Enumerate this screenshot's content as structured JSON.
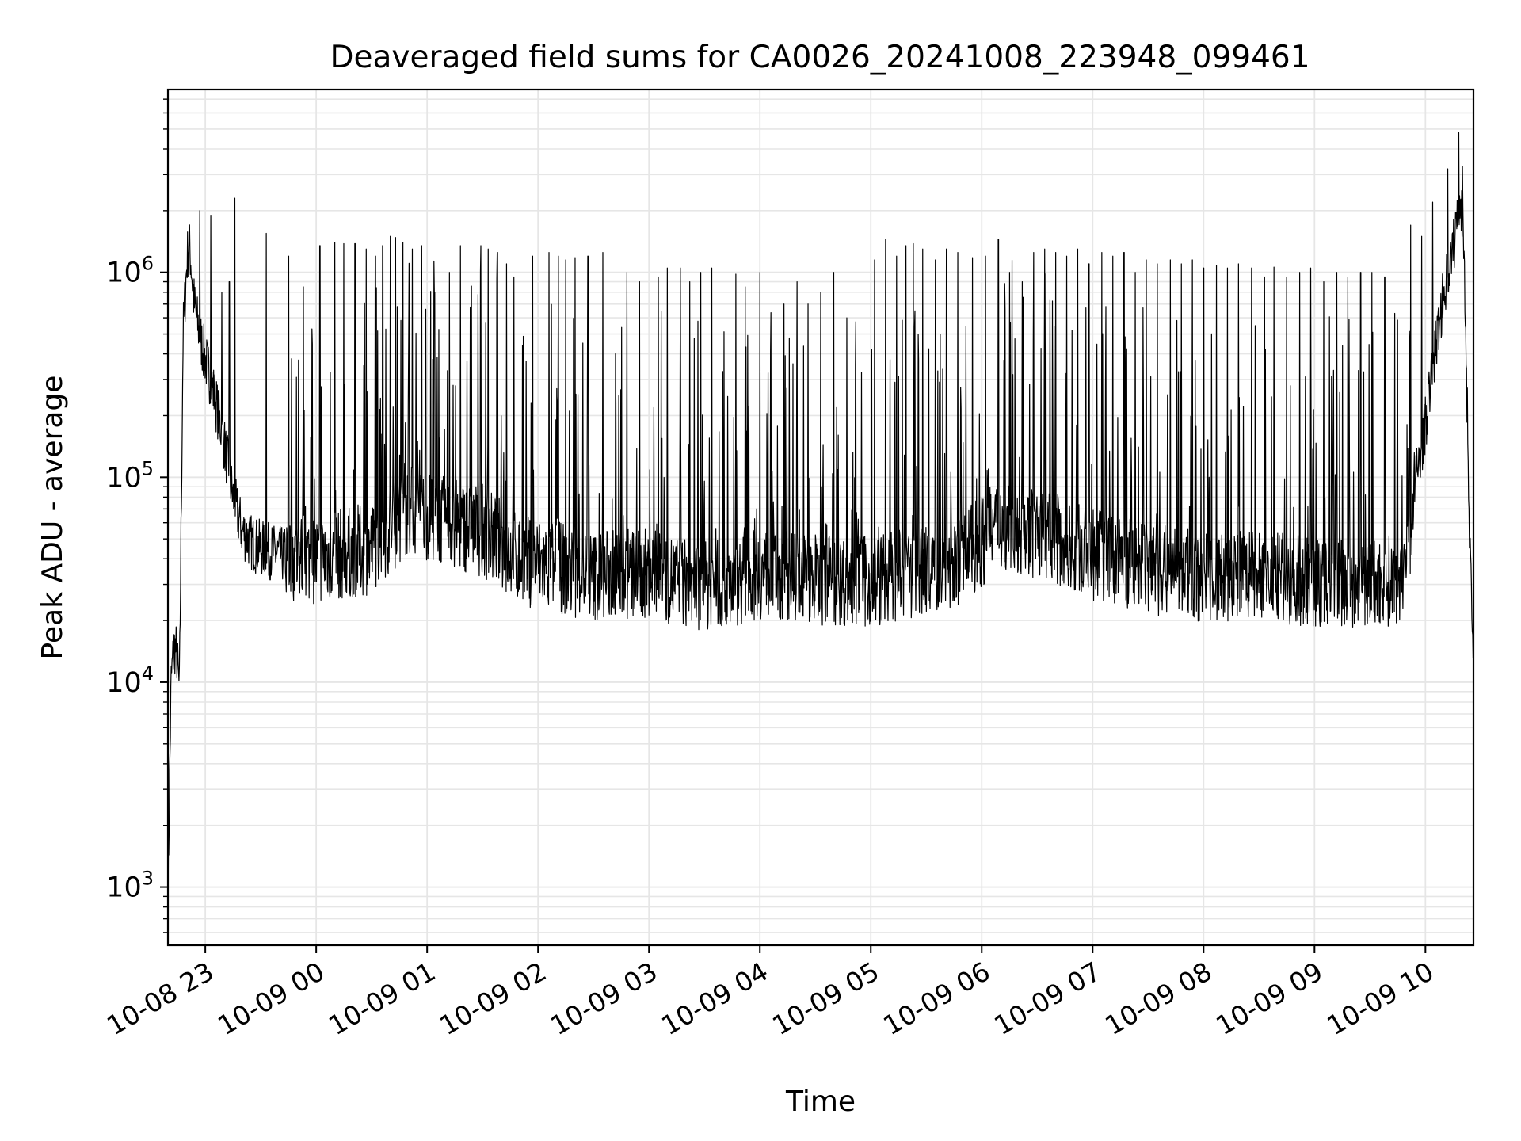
{
  "chart_data": {
    "type": "line",
    "title": "Deaveraged field sums for CA0026_20241008_223948_099461",
    "xlabel": "Time",
    "ylabel": "Peak ADU - average",
    "yscale": "log",
    "ylim": [
      520,
      7800000
    ],
    "xlim": [
      "2024-10-08 22:39:48",
      "2024-10-09 10:26:00"
    ],
    "grid": true,
    "line_color": "#000000",
    "grid_color": "#e6e6e6",
    "x_ticks": [
      {
        "t": "2024-10-08 23:00",
        "label": "10-08 23"
      },
      {
        "t": "2024-10-09 00:00",
        "label": "10-09 00"
      },
      {
        "t": "2024-10-09 01:00",
        "label": "10-09 01"
      },
      {
        "t": "2024-10-09 02:00",
        "label": "10-09 02"
      },
      {
        "t": "2024-10-09 03:00",
        "label": "10-09 03"
      },
      {
        "t": "2024-10-09 04:00",
        "label": "10-09 04"
      },
      {
        "t": "2024-10-09 05:00",
        "label": "10-09 05"
      },
      {
        "t": "2024-10-09 06:00",
        "label": "10-09 06"
      },
      {
        "t": "2024-10-09 07:00",
        "label": "10-09 07"
      },
      {
        "t": "2024-10-09 08:00",
        "label": "10-09 08"
      },
      {
        "t": "2024-10-09 09:00",
        "label": "10-09 09"
      },
      {
        "t": "2024-10-09 10:00",
        "label": "10-09 10"
      }
    ],
    "y_ticks": [
      {
        "value": 1000,
        "base": "10",
        "exp": "3"
      },
      {
        "value": 10000,
        "base": "10",
        "exp": "4"
      },
      {
        "value": 100000,
        "base": "10",
        "exp": "5"
      },
      {
        "value": 1000000,
        "base": "10",
        "exp": "6"
      }
    ],
    "series": [
      {
        "x": [
          "2024-10-08 22:39:48",
          "2024-10-08 22:40:30",
          "2024-10-08 22:41:30",
          "2024-10-08 22:43:00",
          "2024-10-08 22:44:30",
          "2024-10-08 22:46:00",
          "2024-10-08 22:48:00",
          "2024-10-08 22:50:00",
          "2024-10-08 22:51:00",
          "2024-10-08 22:52:00",
          "2024-10-08 22:54:00",
          "2024-10-08 22:56:00",
          "2024-10-08 22:58:00",
          "2024-10-08 23:00:00",
          "2024-10-08 23:05:00",
          "2024-10-08 23:10:00",
          "2024-10-08 23:15:00",
          "2024-10-08 23:20:00",
          "2024-10-08 23:25:00",
          "2024-10-08 23:30:00",
          "2024-10-08 23:40:00",
          "2024-10-09 00:00:00",
          "2024-10-09 00:30:00",
          "2024-10-09 00:50:00",
          "2024-10-09 01:10:00",
          "2024-10-09 01:30:00",
          "2024-10-09 01:50:00",
          "2024-10-09 02:30:00",
          "2024-10-09 03:00:00",
          "2024-10-09 03:30:00",
          "2024-10-09 04:00:00",
          "2024-10-09 04:30:00",
          "2024-10-09 05:00:00",
          "2024-10-09 05:30:00",
          "2024-10-09 05:50:00",
          "2024-10-09 06:10:00",
          "2024-10-09 06:40:00",
          "2024-10-09 07:00:00",
          "2024-10-09 07:30:00",
          "2024-10-09 08:00:00",
          "2024-10-09 08:30:00",
          "2024-10-09 09:00:00",
          "2024-10-09 09:30:00",
          "2024-10-09 09:45:00",
          "2024-10-09 09:50:00",
          "2024-10-09 09:55:00",
          "2024-10-09 10:00:00",
          "2024-10-09 10:05:00",
          "2024-10-09 10:10:00",
          "2024-10-09 10:15:00",
          "2024-10-09 10:19:00",
          "2024-10-09 10:21:00",
          "2024-10-09 10:24:00",
          "2024-10-09 10:26:00"
        ],
        "baseline": [
          800,
          2500,
          10000,
          15000,
          14000,
          9000,
          500000,
          1100000,
          1400000,
          1200000,
          700000,
          550000,
          450000,
          380000,
          250000,
          150000,
          80000,
          55000,
          48000,
          45000,
          42000,
          40000,
          45000,
          70000,
          60000,
          55000,
          40000,
          33000,
          34000,
          29000,
          34000,
          32000,
          31000,
          35000,
          40000,
          60000,
          50000,
          42000,
          36000,
          32000,
          33000,
          31000,
          30000,
          32000,
          40000,
          100000,
          180000,
          400000,
          800000,
          1300000,
          2500000,
          1200000,
          50000,
          12000
        ],
        "peaks": [
          {
            "t": "2024-10-08 22:57",
            "v": 2000000
          },
          {
            "t": "2024-10-08 23:03",
            "v": 1900000
          },
          {
            "t": "2024-10-08 23:09",
            "v": 800000
          },
          {
            "t": "2024-10-08 23:13",
            "v": 900000
          },
          {
            "t": "2024-10-08 23:16",
            "v": 2300000
          },
          {
            "t": "2024-10-08 23:33",
            "v": 1550000
          },
          {
            "t": "2024-10-08 23:45",
            "v": 1200000
          },
          {
            "t": "2024-10-08 23:53",
            "v": 850000
          },
          {
            "t": "2024-10-09 00:02",
            "v": 1350000
          },
          {
            "t": "2024-10-09 00:10",
            "v": 1400000
          },
          {
            "t": "2024-10-09 00:15",
            "v": 1380000
          },
          {
            "t": "2024-10-09 00:21",
            "v": 1380000
          },
          {
            "t": "2024-10-09 00:27",
            "v": 1300000
          },
          {
            "t": "2024-10-09 00:32",
            "v": 1200000
          },
          {
            "t": "2024-10-09 00:36",
            "v": 1350000
          },
          {
            "t": "2024-10-09 00:40",
            "v": 1500000
          },
          {
            "t": "2024-10-09 00:43",
            "v": 1480000
          },
          {
            "t": "2024-10-09 00:47",
            "v": 1400000
          },
          {
            "t": "2024-10-09 00:52",
            "v": 1300000
          },
          {
            "t": "2024-10-09 00:57",
            "v": 1350000
          },
          {
            "t": "2024-10-09 01:04",
            "v": 800000
          },
          {
            "t": "2024-10-09 01:12",
            "v": 1000000
          },
          {
            "t": "2024-10-09 01:18",
            "v": 1350000
          },
          {
            "t": "2024-10-09 01:24",
            "v": 1400000
          },
          {
            "t": "2024-10-09 01:29",
            "v": 1350000
          },
          {
            "t": "2024-10-09 01:33",
            "v": 1300000
          },
          {
            "t": "2024-10-09 01:38",
            "v": 1250000
          },
          {
            "t": "2024-10-09 01:43",
            "v": 1100000
          },
          {
            "t": "2024-10-09 01:47",
            "v": 950000
          },
          {
            "t": "2024-10-09 01:52",
            "v": 1050000
          },
          {
            "t": "2024-10-09 01:57",
            "v": 1200000
          },
          {
            "t": "2024-10-09 02:06",
            "v": 1250000
          },
          {
            "t": "2024-10-09 02:11",
            "v": 1200000
          },
          {
            "t": "2024-10-09 02:15",
            "v": 1150000
          },
          {
            "t": "2024-10-09 02:20",
            "v": 1180000
          },
          {
            "t": "2024-10-09 02:27",
            "v": 1200000
          },
          {
            "t": "2024-10-09 02:35",
            "v": 1250000
          },
          {
            "t": "2024-10-09 02:42",
            "v": 400000
          },
          {
            "t": "2024-10-09 02:48",
            "v": 1000000
          },
          {
            "t": "2024-10-09 02:55",
            "v": 900000
          },
          {
            "t": "2024-10-09 03:05",
            "v": 950000
          },
          {
            "t": "2024-10-09 03:10",
            "v": 1050000
          },
          {
            "t": "2024-10-09 03:17",
            "v": 1050000
          },
          {
            "t": "2024-10-09 03:22",
            "v": 900000
          },
          {
            "t": "2024-10-09 03:28",
            "v": 1000000
          },
          {
            "t": "2024-10-09 03:34",
            "v": 1050000
          },
          {
            "t": "2024-10-09 03:40",
            "v": 880000
          },
          {
            "t": "2024-10-09 03:47",
            "v": 980000
          },
          {
            "t": "2024-10-09 03:52",
            "v": 850000
          },
          {
            "t": "2024-10-09 04:00",
            "v": 1000000
          },
          {
            "t": "2024-10-09 04:06",
            "v": 1150000
          },
          {
            "t": "2024-10-09 04:13",
            "v": 700000
          },
          {
            "t": "2024-10-09 04:20",
            "v": 900000
          },
          {
            "t": "2024-10-09 04:26",
            "v": 700000
          },
          {
            "t": "2024-10-09 04:33",
            "v": 800000
          },
          {
            "t": "2024-10-09 04:40",
            "v": 1000000
          },
          {
            "t": "2024-10-09 04:47",
            "v": 600000
          },
          {
            "t": "2024-10-09 04:55",
            "v": 1000000
          },
          {
            "t": "2024-10-09 05:02",
            "v": 1150000
          },
          {
            "t": "2024-10-09 05:08",
            "v": 1450000
          },
          {
            "t": "2024-10-09 05:14",
            "v": 1200000
          },
          {
            "t": "2024-10-09 05:19",
            "v": 1350000
          },
          {
            "t": "2024-10-09 05:23",
            "v": 1380000
          },
          {
            "t": "2024-10-09 05:28",
            "v": 1300000
          },
          {
            "t": "2024-10-09 05:35",
            "v": 1150000
          },
          {
            "t": "2024-10-09 05:41",
            "v": 1300000
          },
          {
            "t": "2024-10-09 05:47",
            "v": 1250000
          },
          {
            "t": "2024-10-09 05:55",
            "v": 1180000
          },
          {
            "t": "2024-10-09 06:02",
            "v": 1200000
          },
          {
            "t": "2024-10-09 06:09",
            "v": 1450000
          },
          {
            "t": "2024-10-09 06:15",
            "v": 1000000
          },
          {
            "t": "2024-10-09 06:22",
            "v": 900000
          },
          {
            "t": "2024-10-09 06:28",
            "v": 1250000
          },
          {
            "t": "2024-10-09 06:34",
            "v": 1300000
          },
          {
            "t": "2024-10-09 06:40",
            "v": 1250000
          },
          {
            "t": "2024-10-09 06:46",
            "v": 1200000
          },
          {
            "t": "2024-10-09 06:52",
            "v": 1300000
          },
          {
            "t": "2024-10-09 06:58",
            "v": 1100000
          },
          {
            "t": "2024-10-09 07:05",
            "v": 1250000
          },
          {
            "t": "2024-10-09 07:11",
            "v": 1200000
          },
          {
            "t": "2024-10-09 07:17",
            "v": 1250000
          },
          {
            "t": "2024-10-09 07:23",
            "v": 1000000
          },
          {
            "t": "2024-10-09 07:29",
            "v": 1150000
          },
          {
            "t": "2024-10-09 07:35",
            "v": 1100000
          },
          {
            "t": "2024-10-09 07:42",
            "v": 1150000
          },
          {
            "t": "2024-10-09 07:48",
            "v": 1100000
          },
          {
            "t": "2024-10-09 07:54",
            "v": 1150000
          },
          {
            "t": "2024-10-09 08:00",
            "v": 1050000
          },
          {
            "t": "2024-10-09 08:07",
            "v": 1080000
          },
          {
            "t": "2024-10-09 08:13",
            "v": 1050000
          },
          {
            "t": "2024-10-09 08:19",
            "v": 1100000
          },
          {
            "t": "2024-10-09 08:26",
            "v": 1050000
          },
          {
            "t": "2024-10-09 08:33",
            "v": 950000
          },
          {
            "t": "2024-10-09 08:38",
            "v": 1060000
          },
          {
            "t": "2024-10-09 08:45",
            "v": 950000
          },
          {
            "t": "2024-10-09 08:52",
            "v": 1000000
          },
          {
            "t": "2024-10-09 08:58",
            "v": 1050000
          },
          {
            "t": "2024-10-09 09:05",
            "v": 900000
          },
          {
            "t": "2024-10-09 09:12",
            "v": 1000000
          },
          {
            "t": "2024-10-09 09:18",
            "v": 950000
          },
          {
            "t": "2024-10-09 09:25",
            "v": 1000000
          },
          {
            "t": "2024-10-09 09:31",
            "v": 1000000
          },
          {
            "t": "2024-10-09 09:38",
            "v": 950000
          },
          {
            "t": "2024-10-09 09:45",
            "v": 1000000
          },
          {
            "t": "2024-10-09 09:52",
            "v": 1700000
          },
          {
            "t": "2024-10-09 09:58",
            "v": 1500000
          },
          {
            "t": "2024-10-09 10:04",
            "v": 2200000
          },
          {
            "t": "2024-10-09 10:12",
            "v": 3200000
          },
          {
            "t": "2024-10-09 10:18",
            "v": 4800000
          },
          {
            "t": "2024-10-09 10:20",
            "v": 3300000
          }
        ]
      }
    ]
  }
}
